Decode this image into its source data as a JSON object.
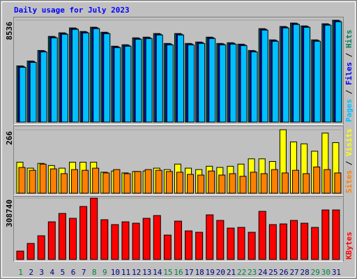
{
  "chart_data": [
    {
      "type": "bar",
      "title": "Daily usage for July 2023",
      "separator": " / ",
      "series": [
        {
          "name": "Hits",
          "color": "#00805c",
          "values": [
            4710,
            5120,
            6000,
            7180,
            7480,
            7890,
            7590,
            7950,
            7530,
            6360,
            6480,
            7060,
            7120,
            7420,
            6590,
            7420,
            6590,
            6710,
            7120,
            6590,
            6650,
            6530,
            6000,
            7830,
            6890,
            8010,
            8300,
            8060,
            6890,
            8240,
            8536
          ]
        },
        {
          "name": "Files",
          "color": "#0000ff",
          "values": [
            4660,
            5070,
            5950,
            7130,
            7430,
            7840,
            7540,
            7900,
            7480,
            6310,
            6430,
            7010,
            7070,
            7370,
            6540,
            7370,
            6540,
            6660,
            7070,
            6540,
            6600,
            6480,
            5950,
            7780,
            6840,
            7960,
            8250,
            8010,
            6840,
            8190,
            8480
          ]
        },
        {
          "name": "Pages",
          "color": "#00c0ff",
          "values": [
            4590,
            5000,
            5880,
            7060,
            7360,
            7770,
            7470,
            7830,
            7410,
            6240,
            6360,
            6940,
            7000,
            7300,
            6470,
            7300,
            6470,
            6590,
            7000,
            6470,
            6530,
            6410,
            5880,
            7710,
            6770,
            7890,
            8180,
            7940,
            6770,
            8120,
            8410
          ]
        }
      ],
      "ylim": [
        0,
        8536
      ],
      "yticks": [
        8536
      ]
    },
    {
      "type": "bar",
      "separator": " / ",
      "series": [
        {
          "name": "Visits",
          "color": "#ffff00",
          "values": [
            130,
            105,
            125,
            116,
            105,
            130,
            130,
            130,
            88,
            93,
            85,
            91,
            93,
            105,
            99,
            122,
            105,
            99,
            113,
            108,
            113,
            122,
            144,
            144,
            133,
            266,
            215,
            207,
            176,
            252,
            212
          ]
        },
        {
          "name": "Sites",
          "color": "#ff8000",
          "values": [
            108,
            96,
            122,
            102,
            82,
            99,
            96,
            105,
            85,
            99,
            82,
            91,
            99,
            96,
            91,
            88,
            79,
            76,
            93,
            76,
            82,
            71,
            88,
            82,
            99,
            85,
            96,
            82,
            110,
            99,
            85
          ]
        }
      ],
      "ylim": [
        0,
        266
      ],
      "yticks": [
        266
      ]
    },
    {
      "type": "bar",
      "categories": [
        "1",
        "2",
        "3",
        "4",
        "5",
        "6",
        "7",
        "8",
        "9",
        "10",
        "11",
        "12",
        "13",
        "14",
        "15",
        "16",
        "17",
        "18",
        "19",
        "20",
        "21",
        "22",
        "23",
        "24",
        "25",
        "26",
        "27",
        "28",
        "29",
        "30",
        "31"
      ],
      "category_colors": [
        "#008040",
        "#000080",
        "#000080",
        "#000080",
        "#000080",
        "#000080",
        "#000080",
        "#008040",
        "#008040",
        "#000080",
        "#000080",
        "#000080",
        "#000080",
        "#000080",
        "#008040",
        "#008040",
        "#000080",
        "#000080",
        "#000080",
        "#000080",
        "#000080",
        "#008040",
        "#008040",
        "#000080",
        "#000080",
        "#000080",
        "#000080",
        "#000080",
        "#008040",
        "#008040",
        "#000080"
      ],
      "series": [
        {
          "name": "KBytes",
          "color": "#ff0000",
          "values": [
            42100,
            80700,
            119300,
            189400,
            231500,
            207000,
            266600,
            308740,
            200000,
            175400,
            189400,
            182400,
            207000,
            221000,
            122800,
            193000,
            143800,
            136800,
            224500,
            196400,
            157900,
            161400,
            136800,
            242000,
            175400,
            178900,
            196400,
            182400,
            161400,
            249100,
            249100
          ]
        }
      ],
      "ylim": [
        0,
        308740
      ],
      "yticks": [
        308740
      ]
    }
  ]
}
